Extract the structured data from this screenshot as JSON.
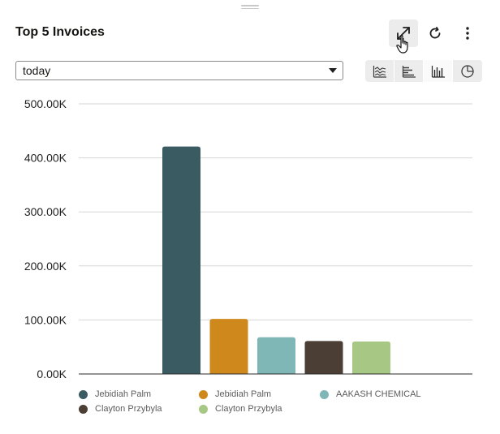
{
  "widget": {
    "title": "Top 5 Invoices"
  },
  "toolbar": {
    "expand_icon": "expand-arrows-icon",
    "refresh_icon": "refresh-icon",
    "more_icon": "more-vertical-icon"
  },
  "filter": {
    "selected": "today"
  },
  "chart_types": [
    "area",
    "horizontal-bar",
    "vertical-bar",
    "pie"
  ],
  "chart_data": {
    "type": "bar",
    "title": "Top 5 Invoices",
    "categories": [
      "Jebidiah Palm",
      "Jebidiah Palm",
      "AAKASH CHEMICAL",
      "Clayton Przybyla",
      "Clayton Przybyla"
    ],
    "values": [
      421000,
      102000,
      68000,
      61000,
      60000
    ],
    "colors": [
      "#3b5b63",
      "#cf881b",
      "#7fb6b6",
      "#4b3f35",
      "#a7c785"
    ],
    "ylim": [
      0,
      500000
    ],
    "yticks": [
      0,
      100000,
      200000,
      300000,
      400000,
      500000
    ],
    "ytick_labels": [
      "0.00K",
      "100.00K",
      "200.00K",
      "300.00K",
      "400.00K",
      "500.00K"
    ],
    "grid": true,
    "legend_position": "bottom",
    "xlabel": "",
    "ylabel": ""
  }
}
